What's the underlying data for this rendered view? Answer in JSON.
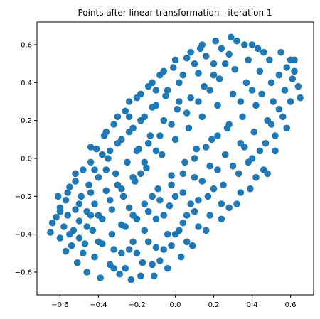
{
  "chart_data": {
    "type": "scatter",
    "title": "Points after linear transformation - iteration 1",
    "xlabel": "",
    "ylabel": "",
    "xlim": [
      -0.72,
      0.72
    ],
    "ylim": [
      -0.72,
      0.72
    ],
    "xticks": [
      -0.6,
      -0.4,
      -0.2,
      0.0,
      0.2,
      0.4,
      0.6
    ],
    "yticks": [
      -0.6,
      -0.4,
      -0.2,
      0.0,
      0.2,
      0.4,
      0.6
    ],
    "xtick_labels": [
      "−0.6",
      "−0.4",
      "−0.2",
      "0.0",
      "0.2",
      "0.4",
      "0.6"
    ],
    "ytick_labels": [
      "−0.6",
      "−0.4",
      "−0.2",
      "0.0",
      "0.2",
      "0.4",
      "0.6"
    ],
    "grid": false,
    "marker_color": "#1f77b4",
    "series": [
      {
        "points": [
          [
            -0.65,
            -0.39
          ],
          [
            -0.64,
            -0.34
          ],
          [
            -0.62,
            -0.31
          ],
          [
            -0.61,
            -0.2
          ],
          [
            -0.6,
            -0.42
          ],
          [
            -0.6,
            -0.26
          ],
          [
            -0.58,
            -0.36
          ],
          [
            -0.57,
            -0.49
          ],
          [
            -0.57,
            -0.22
          ],
          [
            -0.56,
            -0.3
          ],
          [
            -0.55,
            -0.15
          ],
          [
            -0.54,
            -0.46
          ],
          [
            -0.53,
            -0.38
          ],
          [
            -0.52,
            -0.27
          ],
          [
            -0.52,
            -0.12
          ],
          [
            -0.51,
            -0.55
          ],
          [
            -0.5,
            -0.33
          ],
          [
            -0.49,
            -0.2
          ],
          [
            -0.48,
            -0.06
          ],
          [
            -0.47,
            -0.45
          ],
          [
            -0.46,
            -0.6
          ],
          [
            -0.46,
            -0.28
          ],
          [
            -0.45,
            -0.14
          ],
          [
            -0.44,
            -0.02
          ],
          [
            -0.43,
            -0.38
          ],
          [
            -0.42,
            -0.52
          ],
          [
            -0.42,
            -0.24
          ],
          [
            -0.41,
            0.05
          ],
          [
            -0.4,
            -0.1
          ],
          [
            -0.39,
            -0.63
          ],
          [
            -0.38,
            -0.45
          ],
          [
            -0.38,
            -0.32
          ],
          [
            -0.37,
            0.12
          ],
          [
            -0.36,
            -0.17
          ],
          [
            -0.35,
            0.0
          ],
          [
            -0.34,
            -0.56
          ],
          [
            -0.33,
            -0.4
          ],
          [
            -0.33,
            -0.27
          ],
          [
            -0.32,
            0.18
          ],
          [
            -0.31,
            -0.08
          ],
          [
            -0.3,
            0.08
          ],
          [
            -0.29,
            -0.61
          ],
          [
            -0.28,
            -0.5
          ],
          [
            -0.28,
            -0.35
          ],
          [
            -0.27,
            -0.2
          ],
          [
            -0.26,
            0.25
          ],
          [
            -0.25,
            -0.02
          ],
          [
            -0.24,
            0.14
          ],
          [
            -0.23,
            -0.64
          ],
          [
            -0.22,
            -0.44
          ],
          [
            -0.22,
            -0.3
          ],
          [
            -0.21,
            -0.12
          ],
          [
            -0.2,
            0.32
          ],
          [
            -0.19,
            0.05
          ],
          [
            -0.18,
            0.2
          ],
          [
            -0.17,
            -0.55
          ],
          [
            -0.16,
            -0.38
          ],
          [
            -0.16,
            -0.24
          ],
          [
            -0.15,
            -0.05
          ],
          [
            -0.14,
            0.38
          ],
          [
            -0.13,
            0.12
          ],
          [
            -0.12,
            0.27
          ],
          [
            -0.11,
            -0.62
          ],
          [
            -0.1,
            -0.47
          ],
          [
            -0.1,
            -0.32
          ],
          [
            -0.09,
            -0.16
          ],
          [
            -0.08,
            0.44
          ],
          [
            -0.07,
            0.02
          ],
          [
            -0.06,
            0.2
          ],
          [
            -0.05,
            0.33
          ],
          [
            -0.04,
            -0.58
          ],
          [
            -0.04,
            -0.4
          ],
          [
            -0.03,
            -0.25
          ],
          [
            -0.02,
            -0.09
          ],
          [
            -0.01,
            0.48
          ],
          [
            0.0,
            0.1
          ],
          [
            0.01,
            0.26
          ],
          [
            0.02,
            0.4
          ],
          [
            0.03,
            -0.52
          ],
          [
            0.04,
            -0.34
          ],
          [
            0.04,
            -0.18
          ],
          [
            0.05,
            -0.02
          ],
          [
            0.06,
            0.53
          ],
          [
            0.07,
            0.16
          ],
          [
            0.08,
            0.32
          ],
          [
            0.09,
            -0.46
          ],
          [
            0.1,
            -0.28
          ],
          [
            0.1,
            -0.1
          ],
          [
            0.11,
            0.05
          ],
          [
            0.12,
            0.45
          ],
          [
            0.13,
            0.58
          ],
          [
            0.14,
            0.22
          ],
          [
            0.15,
            0.38
          ],
          [
            0.16,
            -0.38
          ],
          [
            0.17,
            -0.2
          ],
          [
            0.18,
            -0.04
          ],
          [
            0.19,
            0.1
          ],
          [
            0.2,
            0.5
          ],
          [
            0.21,
            0.62
          ],
          [
            0.22,
            0.28
          ],
          [
            0.23,
            0.42
          ],
          [
            0.24,
            -0.32
          ],
          [
            0.25,
            -0.14
          ],
          [
            0.26,
            0.02
          ],
          [
            0.27,
            0.16
          ],
          [
            0.28,
            0.55
          ],
          [
            0.29,
            0.64
          ],
          [
            0.3,
            0.34
          ],
          [
            0.31,
            0.47
          ],
          [
            0.32,
            -0.24
          ],
          [
            0.33,
            -0.08
          ],
          [
            0.34,
            0.08
          ],
          [
            0.35,
            0.22
          ],
          [
            0.36,
            0.6
          ],
          [
            0.37,
            0.4
          ],
          [
            0.38,
            0.52
          ],
          [
            0.39,
            -0.16
          ],
          [
            0.4,
            0.0
          ],
          [
            0.41,
            0.14
          ],
          [
            0.42,
            0.28
          ],
          [
            0.43,
            0.58
          ],
          [
            0.44,
            0.46
          ],
          [
            0.45,
            0.34
          ],
          [
            0.46,
            -0.06
          ],
          [
            0.47,
            0.08
          ],
          [
            0.48,
            0.2
          ],
          [
            0.49,
            0.52
          ],
          [
            0.5,
            0.4
          ],
          [
            0.51,
            0.3
          ],
          [
            0.52,
            0.12
          ],
          [
            0.54,
            0.44
          ],
          [
            0.55,
            0.56
          ],
          [
            0.56,
            0.22
          ],
          [
            0.57,
            0.36
          ],
          [
            0.58,
            0.48
          ],
          [
            0.6,
            0.3
          ],
          [
            0.61,
            0.42
          ],
          [
            0.62,
            0.52
          ],
          [
            0.64,
            0.38
          ],
          [
            0.65,
            0.32
          ],
          [
            -0.6,
            -0.28
          ],
          [
            -0.55,
            -0.4
          ],
          [
            -0.5,
            -0.24
          ],
          [
            -0.48,
            -0.5
          ],
          [
            -0.44,
            -0.3
          ],
          [
            -0.4,
            -0.44
          ],
          [
            -0.36,
            -0.06
          ],
          [
            -0.32,
            -0.48
          ],
          [
            -0.3,
            -0.14
          ],
          [
            -0.26,
            -0.58
          ],
          [
            -0.24,
            -0.26
          ],
          [
            -0.2,
            -0.5
          ],
          [
            -0.18,
            -0.08
          ],
          [
            -0.14,
            -0.44
          ],
          [
            -0.12,
            -0.2
          ],
          [
            -0.08,
            -0.54
          ],
          [
            -0.06,
            -0.3
          ],
          [
            -0.02,
            -0.46
          ],
          [
            0.0,
            -0.2
          ],
          [
            0.02,
            -0.38
          ],
          [
            0.06,
            -0.44
          ],
          [
            0.08,
            -0.24
          ],
          [
            0.12,
            -0.36
          ],
          [
            0.14,
            -0.12
          ],
          [
            0.18,
            -0.3
          ],
          [
            0.2,
            -0.16
          ],
          [
            0.24,
            -0.24
          ],
          [
            0.28,
            -0.26
          ],
          [
            0.3,
            -0.04
          ],
          [
            0.34,
            -0.18
          ],
          [
            0.38,
            -0.02
          ],
          [
            0.42,
            -0.1
          ],
          [
            0.44,
            0.04
          ],
          [
            0.48,
            -0.08
          ],
          [
            0.5,
            0.18
          ],
          [
            0.52,
            0.04
          ],
          [
            0.54,
            0.26
          ],
          [
            0.58,
            0.16
          ],
          [
            0.6,
            0.52
          ],
          [
            0.62,
            0.46
          ],
          [
            -0.34,
            0.04
          ],
          [
            -0.28,
            0.1
          ],
          [
            -0.22,
            0.16
          ],
          [
            -0.16,
            0.22
          ],
          [
            -0.1,
            0.28
          ],
          [
            -0.04,
            0.36
          ],
          [
            0.04,
            0.44
          ],
          [
            0.1,
            0.5
          ],
          [
            0.16,
            0.54
          ],
          [
            0.24,
            0.58
          ],
          [
            -0.3,
            0.22
          ],
          [
            -0.24,
            0.3
          ],
          [
            -0.18,
            0.34
          ],
          [
            -0.12,
            0.4
          ],
          [
            -0.06,
            0.46
          ],
          [
            0.0,
            0.52
          ],
          [
            0.08,
            0.56
          ],
          [
            0.14,
            0.6
          ],
          [
            0.32,
            0.62
          ],
          [
            0.4,
            0.6
          ],
          [
            -0.42,
            -0.06
          ],
          [
            -0.38,
            0.02
          ],
          [
            -0.44,
            -0.18
          ],
          [
            -0.2,
            0.04
          ],
          [
            -0.14,
            0.08
          ],
          [
            -0.08,
            0.12
          ],
          [
            -0.02,
            0.18
          ],
          [
            0.06,
            0.24
          ],
          [
            0.12,
            0.3
          ],
          [
            0.18,
            0.36
          ],
          [
            -0.26,
            -0.36
          ],
          [
            -0.2,
            -0.32
          ],
          [
            -0.14,
            -0.28
          ],
          [
            -0.08,
            -0.22
          ],
          [
            -0.02,
            -0.14
          ],
          [
            0.04,
            -0.08
          ],
          [
            0.1,
            0.0
          ],
          [
            0.16,
            0.06
          ],
          [
            0.22,
            0.12
          ],
          [
            0.28,
            0.18
          ],
          [
            -0.5,
            -0.42
          ],
          [
            -0.46,
            -0.36
          ],
          [
            -0.4,
            -0.3
          ],
          [
            -0.34,
            -0.22
          ],
          [
            -0.28,
            -0.16
          ],
          [
            -0.22,
            -0.1
          ],
          [
            -0.16,
            -0.02
          ],
          [
            -0.1,
            0.04
          ],
          [
            0.34,
            0.3
          ],
          [
            0.4,
            0.36
          ],
          [
            -0.56,
            -0.18
          ],
          [
            -0.52,
            -0.08
          ],
          [
            -0.44,
            0.06
          ],
          [
            -0.36,
            0.14
          ],
          [
            -0.24,
            0.22
          ],
          [
            -0.1,
            0.36
          ],
          [
            0.02,
            0.3
          ],
          [
            0.2,
            0.44
          ],
          [
            0.26,
            0.5
          ],
          [
            0.46,
            0.56
          ],
          [
            -0.32,
            -0.58
          ],
          [
            -0.24,
            -0.48
          ],
          [
            -0.18,
            -0.62
          ],
          [
            -0.12,
            -0.56
          ],
          [
            -0.06,
            -0.48
          ],
          [
            0.0,
            -0.4
          ],
          [
            0.06,
            -0.3
          ],
          [
            0.12,
            -0.22
          ],
          [
            0.22,
            -0.06
          ],
          [
            0.36,
            0.06
          ]
        ]
      }
    ]
  }
}
